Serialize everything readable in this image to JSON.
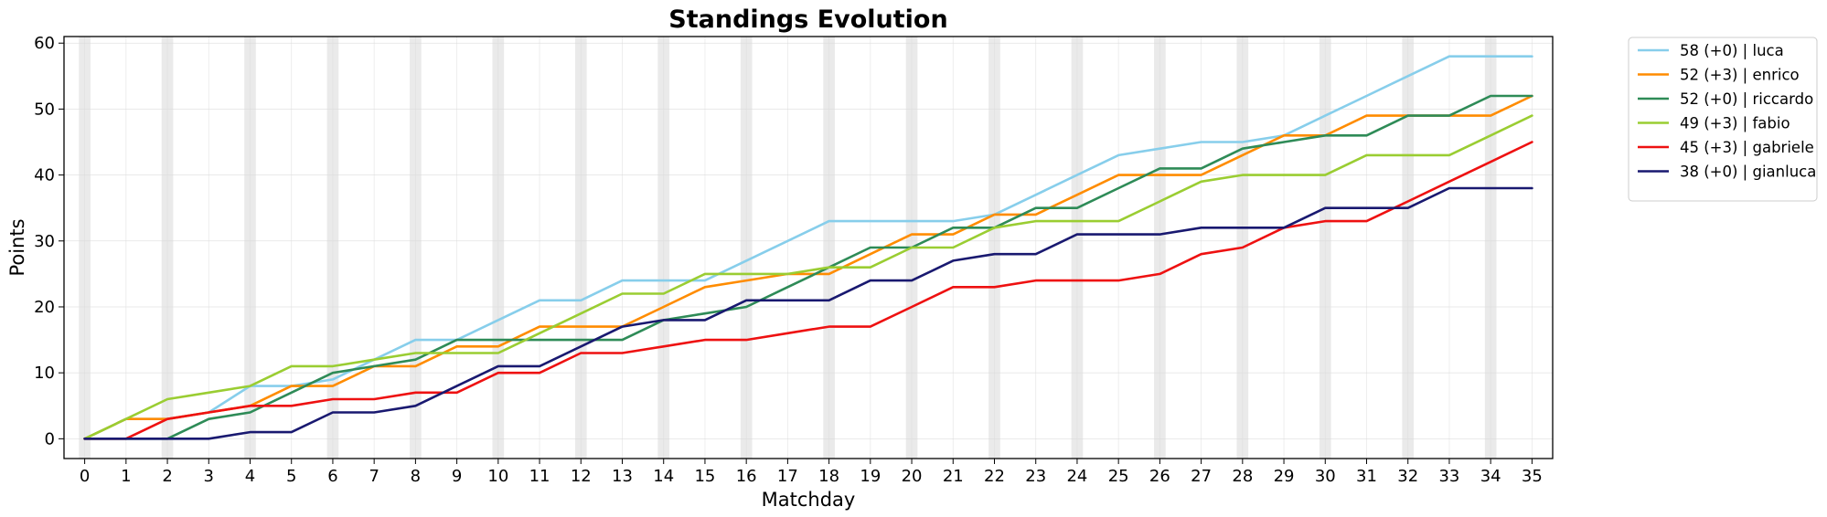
{
  "chart_data": {
    "type": "line",
    "title": "Standings Evolution",
    "xlabel": "Matchday",
    "ylabel": "Points",
    "xlim": [
      -0.5,
      35.5
    ],
    "ylim": [
      -3,
      61
    ],
    "x": [
      0,
      1,
      2,
      3,
      4,
      5,
      6,
      7,
      8,
      9,
      10,
      11,
      12,
      13,
      14,
      15,
      16,
      17,
      18,
      19,
      20,
      21,
      22,
      23,
      24,
      25,
      26,
      27,
      28,
      29,
      30,
      31,
      32,
      33,
      34,
      35
    ],
    "x_ticks": [
      0,
      1,
      2,
      3,
      4,
      5,
      6,
      7,
      8,
      9,
      10,
      11,
      12,
      13,
      14,
      15,
      16,
      17,
      18,
      19,
      20,
      21,
      22,
      23,
      24,
      25,
      26,
      27,
      28,
      29,
      30,
      31,
      32,
      33,
      34,
      35
    ],
    "y_ticks": [
      0,
      10,
      20,
      30,
      40,
      50,
      60
    ],
    "grid": true,
    "shaded_matchdays": [
      0,
      2,
      4,
      6,
      8,
      10,
      12,
      14,
      16,
      18,
      20,
      22,
      24,
      26,
      28,
      30,
      32,
      34
    ],
    "legend_position": "outside-top-right",
    "series": [
      {
        "label": "58 (+0) | luca",
        "color": "#87CEEB",
        "values": [
          0,
          3,
          3,
          4,
          8,
          8,
          9,
          12,
          15,
          15,
          18,
          21,
          21,
          24,
          24,
          24,
          27,
          30,
          33,
          33,
          33,
          33,
          34,
          37,
          40,
          43,
          44,
          45,
          45,
          46,
          49,
          52,
          55,
          58,
          58,
          58
        ]
      },
      {
        "label": "52 (+3) | enrico",
        "color": "#FF8C00",
        "values": [
          0,
          3,
          3,
          4,
          5,
          8,
          8,
          11,
          11,
          14,
          14,
          17,
          17,
          17,
          20,
          23,
          24,
          25,
          25,
          28,
          31,
          31,
          34,
          34,
          37,
          40,
          40,
          40,
          43,
          46,
          46,
          49,
          49,
          49,
          49,
          52
        ]
      },
      {
        "label": "52 (+0) | riccardo",
        "color": "#2E8B57",
        "values": [
          0,
          0,
          0,
          3,
          4,
          7,
          10,
          11,
          12,
          15,
          15,
          15,
          15,
          15,
          18,
          19,
          20,
          23,
          26,
          29,
          29,
          32,
          32,
          35,
          35,
          38,
          41,
          41,
          44,
          45,
          46,
          46,
          49,
          49,
          52,
          52
        ]
      },
      {
        "label": "49 (+3) | fabio",
        "color": "#9ACD32",
        "values": [
          0,
          3,
          6,
          7,
          8,
          11,
          11,
          12,
          13,
          13,
          13,
          16,
          19,
          22,
          22,
          25,
          25,
          25,
          26,
          26,
          29,
          29,
          32,
          33,
          33,
          33,
          36,
          39,
          40,
          40,
          40,
          43,
          43,
          43,
          46,
          49
        ]
      },
      {
        "label": "45 (+3) | gabriele",
        "color": "#EE1111",
        "values": [
          0,
          0,
          3,
          4,
          5,
          5,
          6,
          6,
          7,
          7,
          10,
          10,
          13,
          13,
          14,
          15,
          15,
          16,
          17,
          17,
          20,
          23,
          23,
          24,
          24,
          24,
          25,
          28,
          29,
          32,
          33,
          33,
          36,
          39,
          42,
          45
        ]
      },
      {
        "label": "38 (+0) | gianluca",
        "color": "#191970",
        "values": [
          0,
          0,
          0,
          0,
          1,
          1,
          4,
          4,
          5,
          8,
          11,
          11,
          14,
          17,
          18,
          18,
          21,
          21,
          21,
          24,
          24,
          27,
          28,
          28,
          31,
          31,
          31,
          32,
          32,
          32,
          35,
          35,
          35,
          38,
          38,
          38
        ]
      }
    ]
  }
}
